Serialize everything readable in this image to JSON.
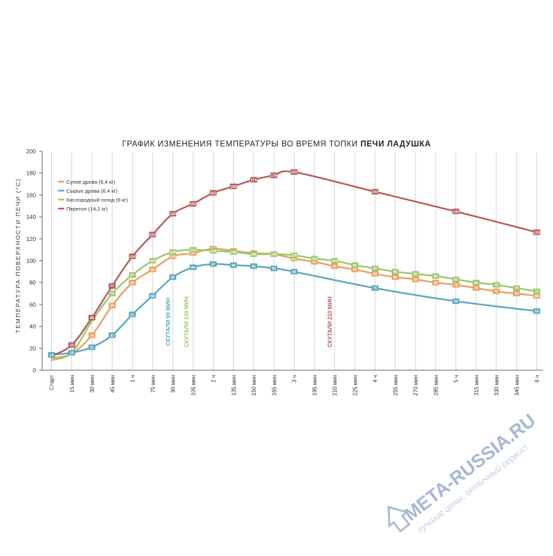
{
  "chart_data": {
    "type": "line",
    "title": {
      "prefix": "ГРАФИК ИЗМЕНЕНИЯ ТЕМПЕРАТУРЫ ВО ВРЕМЯ ТОПКИ ",
      "bold": "ПЕЧИ ЛАДУШКА"
    },
    "ylabel": "ТЕМПЕРАТУРА ПОВЕРХНОСТИ ПЕЧИ (°C)",
    "xlabel": "",
    "ylim": [
      0,
      200
    ],
    "yticks": [
      0,
      20,
      40,
      60,
      80,
      100,
      120,
      140,
      160,
      180,
      200
    ],
    "categories": [
      "Старт",
      "15 мин",
      "30 мин",
      "45 мин",
      "1 ч",
      "75 мин",
      "90 мин",
      "105 мин",
      "2 ч",
      "135 мин",
      "150 мин",
      "165 мин",
      "3 ч",
      "195 мин",
      "210 мин",
      "225 мин",
      "4 ч",
      "255 мин",
      "270 мин",
      "285 мин",
      "5 ч",
      "315 мин",
      "330 мин",
      "345 мин",
      "6 ч"
    ],
    "grid": "vertical",
    "legend_position": "top-left",
    "series": [
      {
        "name": "Сухие дрова (6,4 кг)",
        "color": "#E8A060",
        "points": [
          [
            0,
            11
          ],
          [
            1,
            15
          ],
          [
            2,
            32
          ],
          [
            3,
            59
          ],
          [
            4,
            80
          ],
          [
            5,
            92
          ],
          [
            6,
            104
          ],
          [
            7,
            107
          ],
          [
            8,
            111
          ],
          [
            9,
            109
          ],
          [
            10,
            107
          ],
          [
            11,
            106
          ],
          [
            12,
            102
          ],
          [
            13,
            99
          ],
          [
            14,
            95
          ],
          [
            15,
            92
          ],
          [
            16,
            88
          ],
          [
            17,
            85
          ],
          [
            18,
            83
          ],
          [
            19,
            80
          ],
          [
            20,
            78
          ],
          [
            21,
            75
          ],
          [
            22,
            72
          ],
          [
            23,
            70
          ],
          [
            24,
            68
          ]
        ],
        "labeled": [
          2,
          3,
          4,
          5,
          6,
          7,
          8,
          9,
          10,
          11,
          12,
          13,
          14,
          15,
          16,
          17,
          18,
          19,
          20,
          21,
          22,
          23,
          24
        ]
      },
      {
        "name": "Сырые дрова (6,4 кг)",
        "color": "#5BA7BC",
        "points": [
          [
            0,
            14
          ],
          [
            1,
            16
          ],
          [
            2,
            21
          ],
          [
            3,
            32
          ],
          [
            4,
            51
          ],
          [
            5,
            68
          ],
          [
            6,
            85
          ],
          [
            7,
            94
          ],
          [
            8,
            97
          ],
          [
            9,
            96
          ],
          [
            10,
            95
          ],
          [
            11,
            93
          ],
          [
            12,
            90
          ],
          [
            16,
            75
          ],
          [
            20,
            63
          ],
          [
            24,
            54
          ]
        ],
        "labeled": [
          0,
          1,
          2,
          3,
          4,
          5,
          6,
          7,
          8,
          9,
          10,
          11,
          12,
          16,
          20,
          24
        ]
      },
      {
        "name": "Кислородный голод (6 кг)",
        "color": "#9CC66A",
        "points": [
          [
            0,
            9
          ],
          [
            1,
            16
          ],
          [
            2,
            45
          ],
          [
            3,
            70
          ],
          [
            4,
            87
          ],
          [
            5,
            100
          ],
          [
            6,
            108
          ],
          [
            7,
            110
          ],
          [
            8,
            109
          ],
          [
            9,
            108
          ],
          [
            10,
            106
          ],
          [
            11,
            106
          ],
          [
            12,
            105
          ],
          [
            13,
            102
          ],
          [
            14,
            100
          ],
          [
            15,
            96
          ],
          [
            16,
            93
          ],
          [
            17,
            90
          ],
          [
            18,
            88
          ],
          [
            19,
            86
          ],
          [
            20,
            83
          ],
          [
            21,
            80
          ],
          [
            22,
            78
          ],
          [
            23,
            75
          ],
          [
            24,
            72
          ]
        ],
        "labeled": [
          3,
          4,
          5,
          6,
          7,
          8,
          9,
          10,
          11,
          12,
          13,
          14,
          15,
          16,
          17,
          18,
          19,
          20,
          21,
          22,
          23,
          24
        ]
      },
      {
        "name": "Перетоп (14,2 кг)",
        "color": "#B55A58",
        "points": [
          [
            0,
            13
          ],
          [
            1,
            23
          ],
          [
            2,
            48
          ],
          [
            3,
            77
          ],
          [
            4,
            104
          ],
          [
            5,
            124
          ],
          [
            6,
            143
          ],
          [
            7,
            152
          ],
          [
            8,
            162
          ],
          [
            9,
            168
          ],
          [
            10,
            174
          ],
          [
            11,
            178
          ],
          [
            12,
            181
          ],
          [
            16,
            163
          ],
          [
            20,
            145
          ],
          [
            24,
            126
          ]
        ],
        "labeled": [
          1,
          2,
          3,
          4,
          5,
          6,
          7,
          8,
          9,
          10,
          11,
          12,
          16,
          20,
          24
        ]
      }
    ],
    "annotations": [
      {
        "text": "СКУТАЛИ 90 МИН",
        "x": 6,
        "color": "#5BA7BC"
      },
      {
        "text": "СКУТАЛИ 100 МИН",
        "x": 6.9,
        "color": "#9CC66A"
      },
      {
        "text": "СКУТАЛИ 210 МИН",
        "x": 14,
        "color": "#B55A58"
      }
    ]
  },
  "watermark": {
    "brand": "META-RUSSIA.RU",
    "slogan": "лучшие цены, отличный сервис!"
  }
}
